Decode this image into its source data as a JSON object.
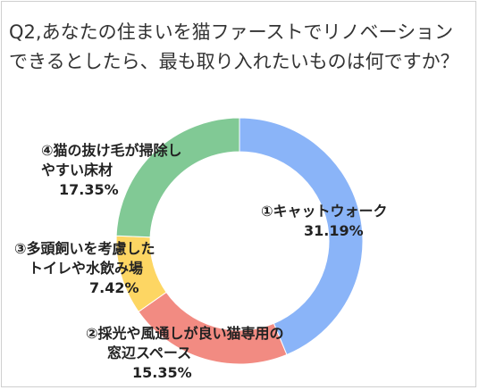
{
  "title": "Q2,あなたの住まいを猫ファーストでリノベーションできるとしたら、最も取り入れたいものは何ですか？",
  "chart_data": {
    "type": "pie",
    "subtype": "donut",
    "slices": [
      {
        "label": "①キャットウォーク",
        "value": 31.19,
        "value_label": "31.19%",
        "color": "#8ab4f8"
      },
      {
        "label": "②採光や風通しが良い猫専用の窓辺スペース",
        "value": 15.35,
        "value_label": "15.35%",
        "color": "#f28b82"
      },
      {
        "label": "③多頭飼いを考慮したトイレや水飲み場",
        "value": 7.42,
        "value_label": "7.42%",
        "color": "#fdd663"
      },
      {
        "label": "④猫の抜け毛が掃除しやすい床材",
        "value": 17.35,
        "value_label": "17.35%",
        "color": "#81c995"
      }
    ],
    "label_lines": {
      "s1": [
        "①キャットウォーク"
      ],
      "s2": [
        "②採光や風通しが良い猫専用の",
        "窓辺スペース"
      ],
      "s3": [
        "③多頭飼いを考慮した",
        "トイレや水飲み場"
      ],
      "s4": [
        "④猫の抜け毛が掃除し",
        "やすい床材"
      ]
    },
    "legend": "none"
  }
}
